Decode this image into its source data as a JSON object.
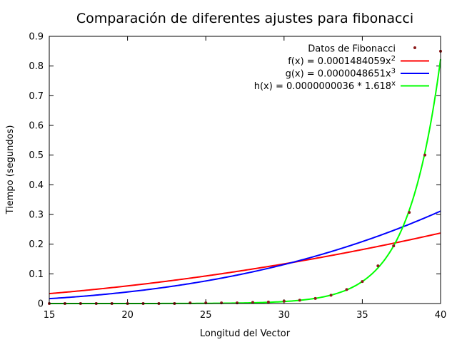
{
  "chart_data": {
    "type": "line",
    "title": "Comparación de diferentes ajustes para fibonacci",
    "xlabel": "Longitud del Vector",
    "ylabel": "Tiempo (segundos)",
    "xlim": [
      15,
      40
    ],
    "ylim": [
      0,
      0.9
    ],
    "xticks": [
      15,
      20,
      25,
      30,
      35,
      40
    ],
    "yticks": [
      0,
      0.1,
      0.2,
      0.3,
      0.4,
      0.5,
      0.6,
      0.7,
      0.8,
      0.9
    ],
    "ytick_labels": [
      "0",
      "0.1",
      "0.2",
      "0.3",
      "0.4",
      "0.5",
      "0.6",
      "0.7",
      "0.8",
      "0.9"
    ],
    "legend_position": "top-right",
    "grid": false,
    "scatter": {
      "name": "Datos de Fibonacci",
      "color": "#8b1a1a",
      "x": [
        15,
        16,
        17,
        18,
        19,
        20,
        21,
        22,
        23,
        24,
        25,
        26,
        27,
        28,
        29,
        30,
        31,
        32,
        33,
        34,
        35,
        36,
        37,
        38,
        39,
        40
      ],
      "y": [
        0.0,
        0.0,
        0.0,
        0.0,
        0.0,
        0.0,
        0.0,
        0.0,
        0.0,
        0.002,
        0.002,
        0.002,
        0.002,
        0.004,
        0.005,
        0.008,
        0.011,
        0.017,
        0.028,
        0.047,
        0.074,
        0.127,
        0.194,
        0.307,
        0.5,
        0.85
      ]
    },
    "series": [
      {
        "name": "f(x) = 0.0001484059x",
        "sup": "2",
        "color": "#ff0000",
        "model": "power",
        "a": 0.0001484059,
        "b": 2
      },
      {
        "name": "g(x) = 0.0000048651x",
        "sup": "3",
        "color": "#0000ff",
        "model": "power",
        "a": 4.8651e-06,
        "b": 3
      },
      {
        "name": "h(x) = 0.0000000036 * 1.618",
        "sup": "x",
        "color": "#00ff00",
        "model": "exp",
        "a": 3.6e-09,
        "b": 1.618
      }
    ]
  }
}
